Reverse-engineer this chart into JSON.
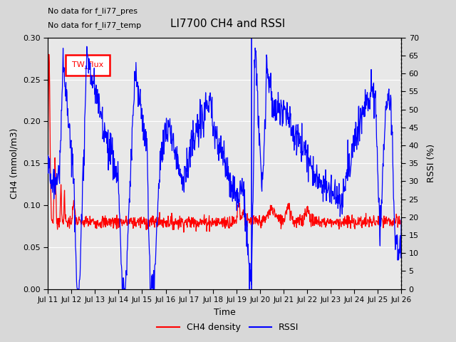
{
  "title": "LI7700 CH4 and RSSI",
  "xlabel": "Time",
  "ylabel_left": "CH4 (mmol/m3)",
  "ylabel_right": "RSSI (%)",
  "ylim_left": [
    0.0,
    0.3
  ],
  "ylim_right": [
    0,
    70
  ],
  "yticks_left": [
    0.0,
    0.05,
    0.1,
    0.15,
    0.2,
    0.25,
    0.3
  ],
  "yticks_right": [
    0,
    5,
    10,
    15,
    20,
    25,
    30,
    35,
    40,
    45,
    50,
    55,
    60,
    65,
    70
  ],
  "xtick_labels": [
    "Jul 11",
    "Jul 12",
    "Jul 13",
    "Jul 14",
    "Jul 15",
    "Jul 16",
    "Jul 17",
    "Jul 18",
    "Jul 19",
    "Jul 20",
    "Jul 21",
    "Jul 22",
    "Jul 23",
    "Jul 24",
    "Jul 25",
    "Jul 26"
  ],
  "annotations": [
    "No data for f_li77_pres",
    "No data for f_li77_temp"
  ],
  "legend_box_label": "TW_flux",
  "ch4_color": "#ff0000",
  "rssi_color": "#0000ff",
  "background_color": "#d8d8d8",
  "plot_bg_color": "#e8e8e8",
  "grid_color": "#ffffff",
  "n_points": 1000
}
